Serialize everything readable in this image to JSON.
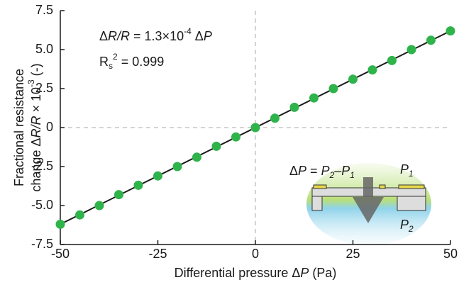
{
  "chart_data": {
    "type": "scatter",
    "x_label": [
      "Differential pressure ",
      "Δ",
      "P",
      " (Pa)"
    ],
    "y_label_line1": "Fractional resistance",
    "y_label_line2": [
      "change ",
      "Δ",
      "R/R",
      " × 10",
      "-3",
      "  (-)"
    ],
    "equation": [
      "Δ",
      "R/R",
      " = 1.3×10",
      "-4",
      " Δ",
      "P"
    ],
    "r_squared": [
      "R",
      "s",
      "2",
      " = 0.999"
    ],
    "inset_formula": [
      "Δ",
      "P",
      " = ",
      "P",
      "2",
      "–",
      "P",
      "1"
    ],
    "inset_p1": [
      "P",
      "1"
    ],
    "inset_p2": [
      "P",
      "2"
    ],
    "x": [
      -50,
      -45,
      -40,
      -35,
      -30,
      -25,
      -20,
      -15,
      -10,
      -5,
      0,
      5,
      10,
      15,
      20,
      25,
      30,
      35,
      40,
      45,
      50
    ],
    "series": [
      {
        "color": "#2fb34b",
        "values": [
          -6.2,
          -5.6,
          -5.0,
          -4.3,
          -3.7,
          -3.1,
          -2.5,
          -1.9,
          -1.2,
          -0.6,
          0,
          0.6,
          1.3,
          1.9,
          2.5,
          3.1,
          3.7,
          4.3,
          5.0,
          5.6,
          6.2
        ]
      }
    ],
    "fit": {
      "color": "#1a1a1a",
      "x": [
        -50,
        50
      ],
      "values": [
        -6.2,
        6.2
      ]
    },
    "xlim": [
      -50,
      50
    ],
    "ylim": [
      -7.5,
      7.5
    ],
    "xticks": [
      -50,
      -25,
      0,
      25,
      50
    ],
    "yticks": [
      7.5,
      {
        "value": 5,
        "label": "5.0"
      },
      2.5,
      0,
      -2.5,
      {
        "value": -5,
        "label": "-5.0"
      },
      -7.5
    ],
    "zero_lines": true
  }
}
